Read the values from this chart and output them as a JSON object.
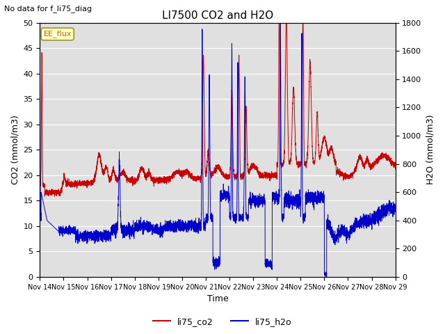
{
  "title": "LI7500 CO2 and H2O",
  "suptitle": "No data for f_li75_diag",
  "xlabel": "Time",
  "ylabel_left": "CO2 (mmol/m3)",
  "ylabel_right": "H2O (mmol/m3)",
  "legend_labels": [
    "li75_co2",
    "li75_h2o"
  ],
  "co2_color": "#cc0000",
  "h2o_color": "#0000cc",
  "ylim_left": [
    0,
    50
  ],
  "ylim_right": [
    0,
    1800
  ],
  "xtick_labels": [
    "Nov 14",
    "Nov 15",
    "Nov 16",
    "Nov 17",
    "Nov 18",
    "Nov 19",
    "Nov 20",
    "Nov 21",
    "Nov 22",
    "Nov 23",
    "Nov 24",
    "Nov 25",
    "Nov 26",
    "Nov 27",
    "Nov 28",
    "Nov 29"
  ],
  "annotation_text": "EE_flux",
  "plot_background": "#e0e0e0",
  "grid_color": "white",
  "figsize": [
    6.4,
    4.8
  ],
  "dpi": 100
}
